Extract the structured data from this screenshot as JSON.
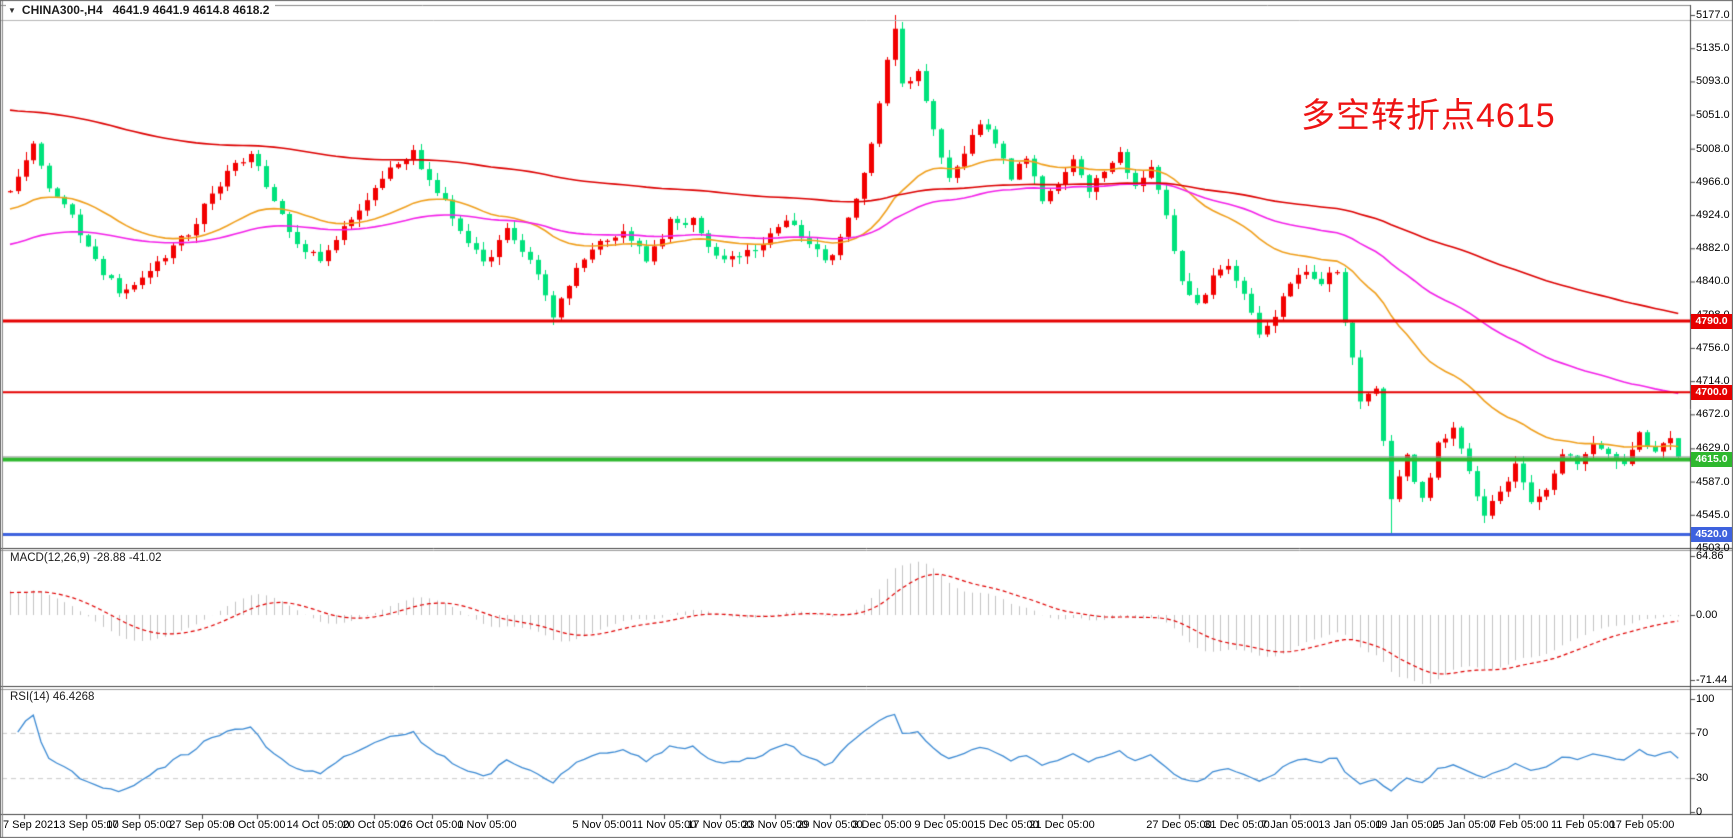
{
  "header": {
    "symbol": "CHINA300-,H4",
    "ohlc_text": "4641.9 4641.9 4614.8 4618.2"
  },
  "annotation": {
    "text": "多空转折点4615",
    "color": "#ee1414"
  },
  "price_axis": {
    "labels": [
      "5177.0",
      "5135.0",
      "5093.0",
      "5051.0",
      "5008.0",
      "4966.0",
      "4924.0",
      "4882.0",
      "4840.0",
      "4798.0",
      "4756.0",
      "4714.0",
      "4672.0",
      "4629.0",
      "4587.0",
      "4545.0",
      "4503.0"
    ]
  },
  "price_flags": [
    {
      "label": "4790.0",
      "price": 4790,
      "color": "#e50000"
    },
    {
      "label": "4700.0",
      "price": 4700,
      "color": "#e50000"
    },
    {
      "label": "4615.0",
      "price": 4615,
      "color": "#2eb82e"
    },
    {
      "label": "4520.0",
      "price": 4520,
      "color": "#3e62de"
    }
  ],
  "macd_panel": {
    "label": "MACD(12,26,9) -28.88 -41.02",
    "axis": [
      {
        "label": "64.86",
        "value": 64.86
      },
      {
        "label": "0.00",
        "value": 0
      },
      {
        "label": "-71.44",
        "value": -71.44
      }
    ]
  },
  "rsi_panel": {
    "label": "RSI(14) 46.4268",
    "axis": [
      {
        "label": "100",
        "value": 100
      },
      {
        "label": "70",
        "value": 70
      },
      {
        "label": "30",
        "value": 30
      },
      {
        "label": "0",
        "value": 0
      }
    ]
  },
  "time_axis": {
    "labels": [
      "7 Sep 2021",
      "13 Sep 05:00",
      "17 Sep 05:00",
      "27 Sep 05:00",
      "8 Oct 05:00",
      "14 Oct 05:00",
      "20 Oct 05:00",
      "26 Oct 05:00",
      "1 Nov 05:00",
      "5 Nov 05:00",
      "11 Nov 05:00",
      "17 Nov 05:00",
      "23 Nov 05:00",
      "29 Nov 05:00",
      "3 Dec 05:00",
      "9 Dec 05:00",
      "15 Dec 05:00",
      "21 Dec 05:00",
      "27 Dec 05:00",
      "31 Dec 05:00",
      "7 Jan 05:00",
      "13 Jan 05:00",
      "19 Jan 05:00",
      "25 Jan 05:00",
      "7 Feb 05:00",
      "11 Feb 05:00",
      "17 Feb 05:00"
    ],
    "centers": [
      24,
      86,
      139,
      202,
      257,
      318,
      374,
      432,
      487,
      602,
      664,
      720,
      775,
      830,
      882,
      944,
      1006,
      1062,
      1179,
      1237,
      1290,
      1350,
      1407,
      1464,
      1519,
      1583,
      1642
    ]
  },
  "chart_data": {
    "type": "candlestick",
    "symbol": "CHINA300-",
    "timeframe": "H4",
    "bar_count": 216,
    "current_bar": {
      "open": 4641.9,
      "high": 4641.9,
      "low": 4614.8,
      "close": 4618.2
    },
    "price_range": {
      "min": 4503,
      "max": 5177
    },
    "colors": {
      "up": "#f20000",
      "down": "#00e27c"
    },
    "close_anchors": [
      [
        0,
        4958
      ],
      [
        3,
        5012
      ],
      [
        5,
        4962
      ],
      [
        8,
        4921
      ],
      [
        11,
        4866
      ],
      [
        14,
        4826
      ],
      [
        17,
        4840
      ],
      [
        20,
        4874
      ],
      [
        23,
        4902
      ],
      [
        26,
        4949
      ],
      [
        29,
        4989
      ],
      [
        31,
        5000
      ],
      [
        34,
        4946
      ],
      [
        37,
        4882
      ],
      [
        40,
        4871
      ],
      [
        43,
        4906
      ],
      [
        46,
        4944
      ],
      [
        49,
        4988
      ],
      [
        52,
        5002
      ],
      [
        55,
        4956
      ],
      [
        58,
        4906
      ],
      [
        61,
        4863
      ],
      [
        64,
        4903
      ],
      [
        67,
        4871
      ],
      [
        70,
        4799
      ],
      [
        73,
        4857
      ],
      [
        76,
        4887
      ],
      [
        79,
        4904
      ],
      [
        82,
        4869
      ],
      [
        85,
        4914
      ],
      [
        88,
        4918
      ],
      [
        91,
        4869
      ],
      [
        94,
        4869
      ],
      [
        97,
        4888
      ],
      [
        100,
        4914
      ],
      [
        103,
        4891
      ],
      [
        105,
        4863
      ],
      [
        107,
        4894
      ],
      [
        109,
        4941
      ],
      [
        111,
        5012
      ],
      [
        113,
        5121
      ],
      [
        114,
        5160
      ],
      [
        115,
        5086
      ],
      [
        117,
        5106
      ],
      [
        119,
        5031
      ],
      [
        121,
        4969
      ],
      [
        123,
        5001
      ],
      [
        125,
        5043
      ],
      [
        127,
        5011
      ],
      [
        129,
        4973
      ],
      [
        131,
        4996
      ],
      [
        133,
        4943
      ],
      [
        135,
        4963
      ],
      [
        137,
        4989
      ],
      [
        139,
        4953
      ],
      [
        141,
        4983
      ],
      [
        143,
        5003
      ],
      [
        145,
        4959
      ],
      [
        147,
        4989
      ],
      [
        149,
        4919
      ],
      [
        151,
        4839
      ],
      [
        153,
        4813
      ],
      [
        155,
        4843
      ],
      [
        157,
        4863
      ],
      [
        159,
        4823
      ],
      [
        161,
        4773
      ],
      [
        163,
        4793
      ],
      [
        165,
        4839
      ],
      [
        167,
        4856
      ],
      [
        169,
        4839
      ],
      [
        171,
        4853
      ],
      [
        172,
        4789
      ],
      [
        174,
        4693
      ],
      [
        176,
        4709
      ],
      [
        178,
        4566
      ],
      [
        180,
        4621
      ],
      [
        182,
        4561
      ],
      [
        184,
        4631
      ],
      [
        186,
        4651
      ],
      [
        188,
        4601
      ],
      [
        190,
        4546
      ],
      [
        192,
        4574
      ],
      [
        194,
        4607
      ],
      [
        196,
        4561
      ],
      [
        198,
        4579
      ],
      [
        200,
        4624
      ],
      [
        202,
        4609
      ],
      [
        204,
        4634
      ],
      [
        206,
        4619
      ],
      [
        208,
        4612
      ],
      [
        210,
        4644
      ],
      [
        212,
        4629
      ],
      [
        214,
        4641.9
      ],
      [
        215,
        4618.2
      ]
    ],
    "extremes": {
      "high": [
        114,
        5177
      ],
      "low": [
        178,
        4520
      ]
    },
    "moving_averages": [
      {
        "name": "ma-fast",
        "color": "#f0a01e",
        "period": 30,
        "seed": 4930
      },
      {
        "name": "ma-mid",
        "color": "#f322e9",
        "period": 70,
        "seed": 4885
      },
      {
        "name": "ma-slow",
        "color": "#dd0000",
        "period": 160,
        "seed": 5058
      }
    ],
    "horizontal_lines": [
      {
        "name": "resistance-4790",
        "price": 4790,
        "color": "#e50000",
        "width": 3
      },
      {
        "name": "resistance-4700",
        "price": 4700,
        "color": "#e50000",
        "width": 2
      },
      {
        "name": "pivot-4615",
        "price": 4615,
        "color": "#2eb82e",
        "width": 4
      },
      {
        "name": "support-4520",
        "price": 4520,
        "color": "#3e62de",
        "width": 3
      },
      {
        "name": "bid-line",
        "price": 4618.2,
        "color": "#9c9c9c",
        "width": 1
      }
    ],
    "indicators": {
      "macd": {
        "fast": 12,
        "slow": 26,
        "signal": 9,
        "current_macd": -28.88,
        "current_signal": -41.02,
        "axis_max": 64.86,
        "axis_min": -71.44,
        "histogram_color": "#c4c4c4",
        "signal_color": "#e00000"
      },
      "rsi": {
        "period": 14,
        "current": 46.4268,
        "color": "#3d8bd4",
        "levels": [
          70,
          30
        ]
      }
    }
  }
}
